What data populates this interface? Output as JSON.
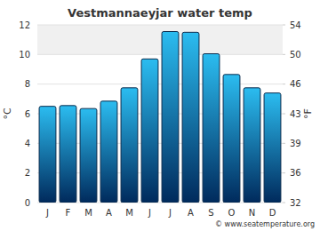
{
  "chart_data": {
    "type": "bar",
    "title": "Vestmannaeyjar water temp",
    "categories": [
      "J",
      "F",
      "M",
      "A",
      "M",
      "J",
      "J",
      "A",
      "S",
      "O",
      "N",
      "D"
    ],
    "values": [
      6.5,
      6.55,
      6.35,
      6.85,
      7.75,
      9.7,
      11.55,
      11.5,
      10.05,
      8.65,
      7.75,
      7.4
    ],
    "color": "#2bbcf0",
    "ylabel": "°C",
    "ylim": [
      0,
      12
    ],
    "yticks": [
      0,
      2,
      4,
      6,
      8,
      10,
      12
    ],
    "y2label": "°F",
    "y2lim": [
      32,
      53.6
    ],
    "y2ticks": [
      32,
      {
        "value": 35.6,
        "label": "36"
      },
      {
        "value": 39.2,
        "label": "39"
      },
      {
        "value": 42.8,
        "label": "43"
      },
      {
        "value": 46.4,
        "label": "46"
      },
      50,
      {
        "value": 53.6,
        "label": "54"
      }
    ],
    "grid": true,
    "credit": "© www.seatemperature.org"
  }
}
